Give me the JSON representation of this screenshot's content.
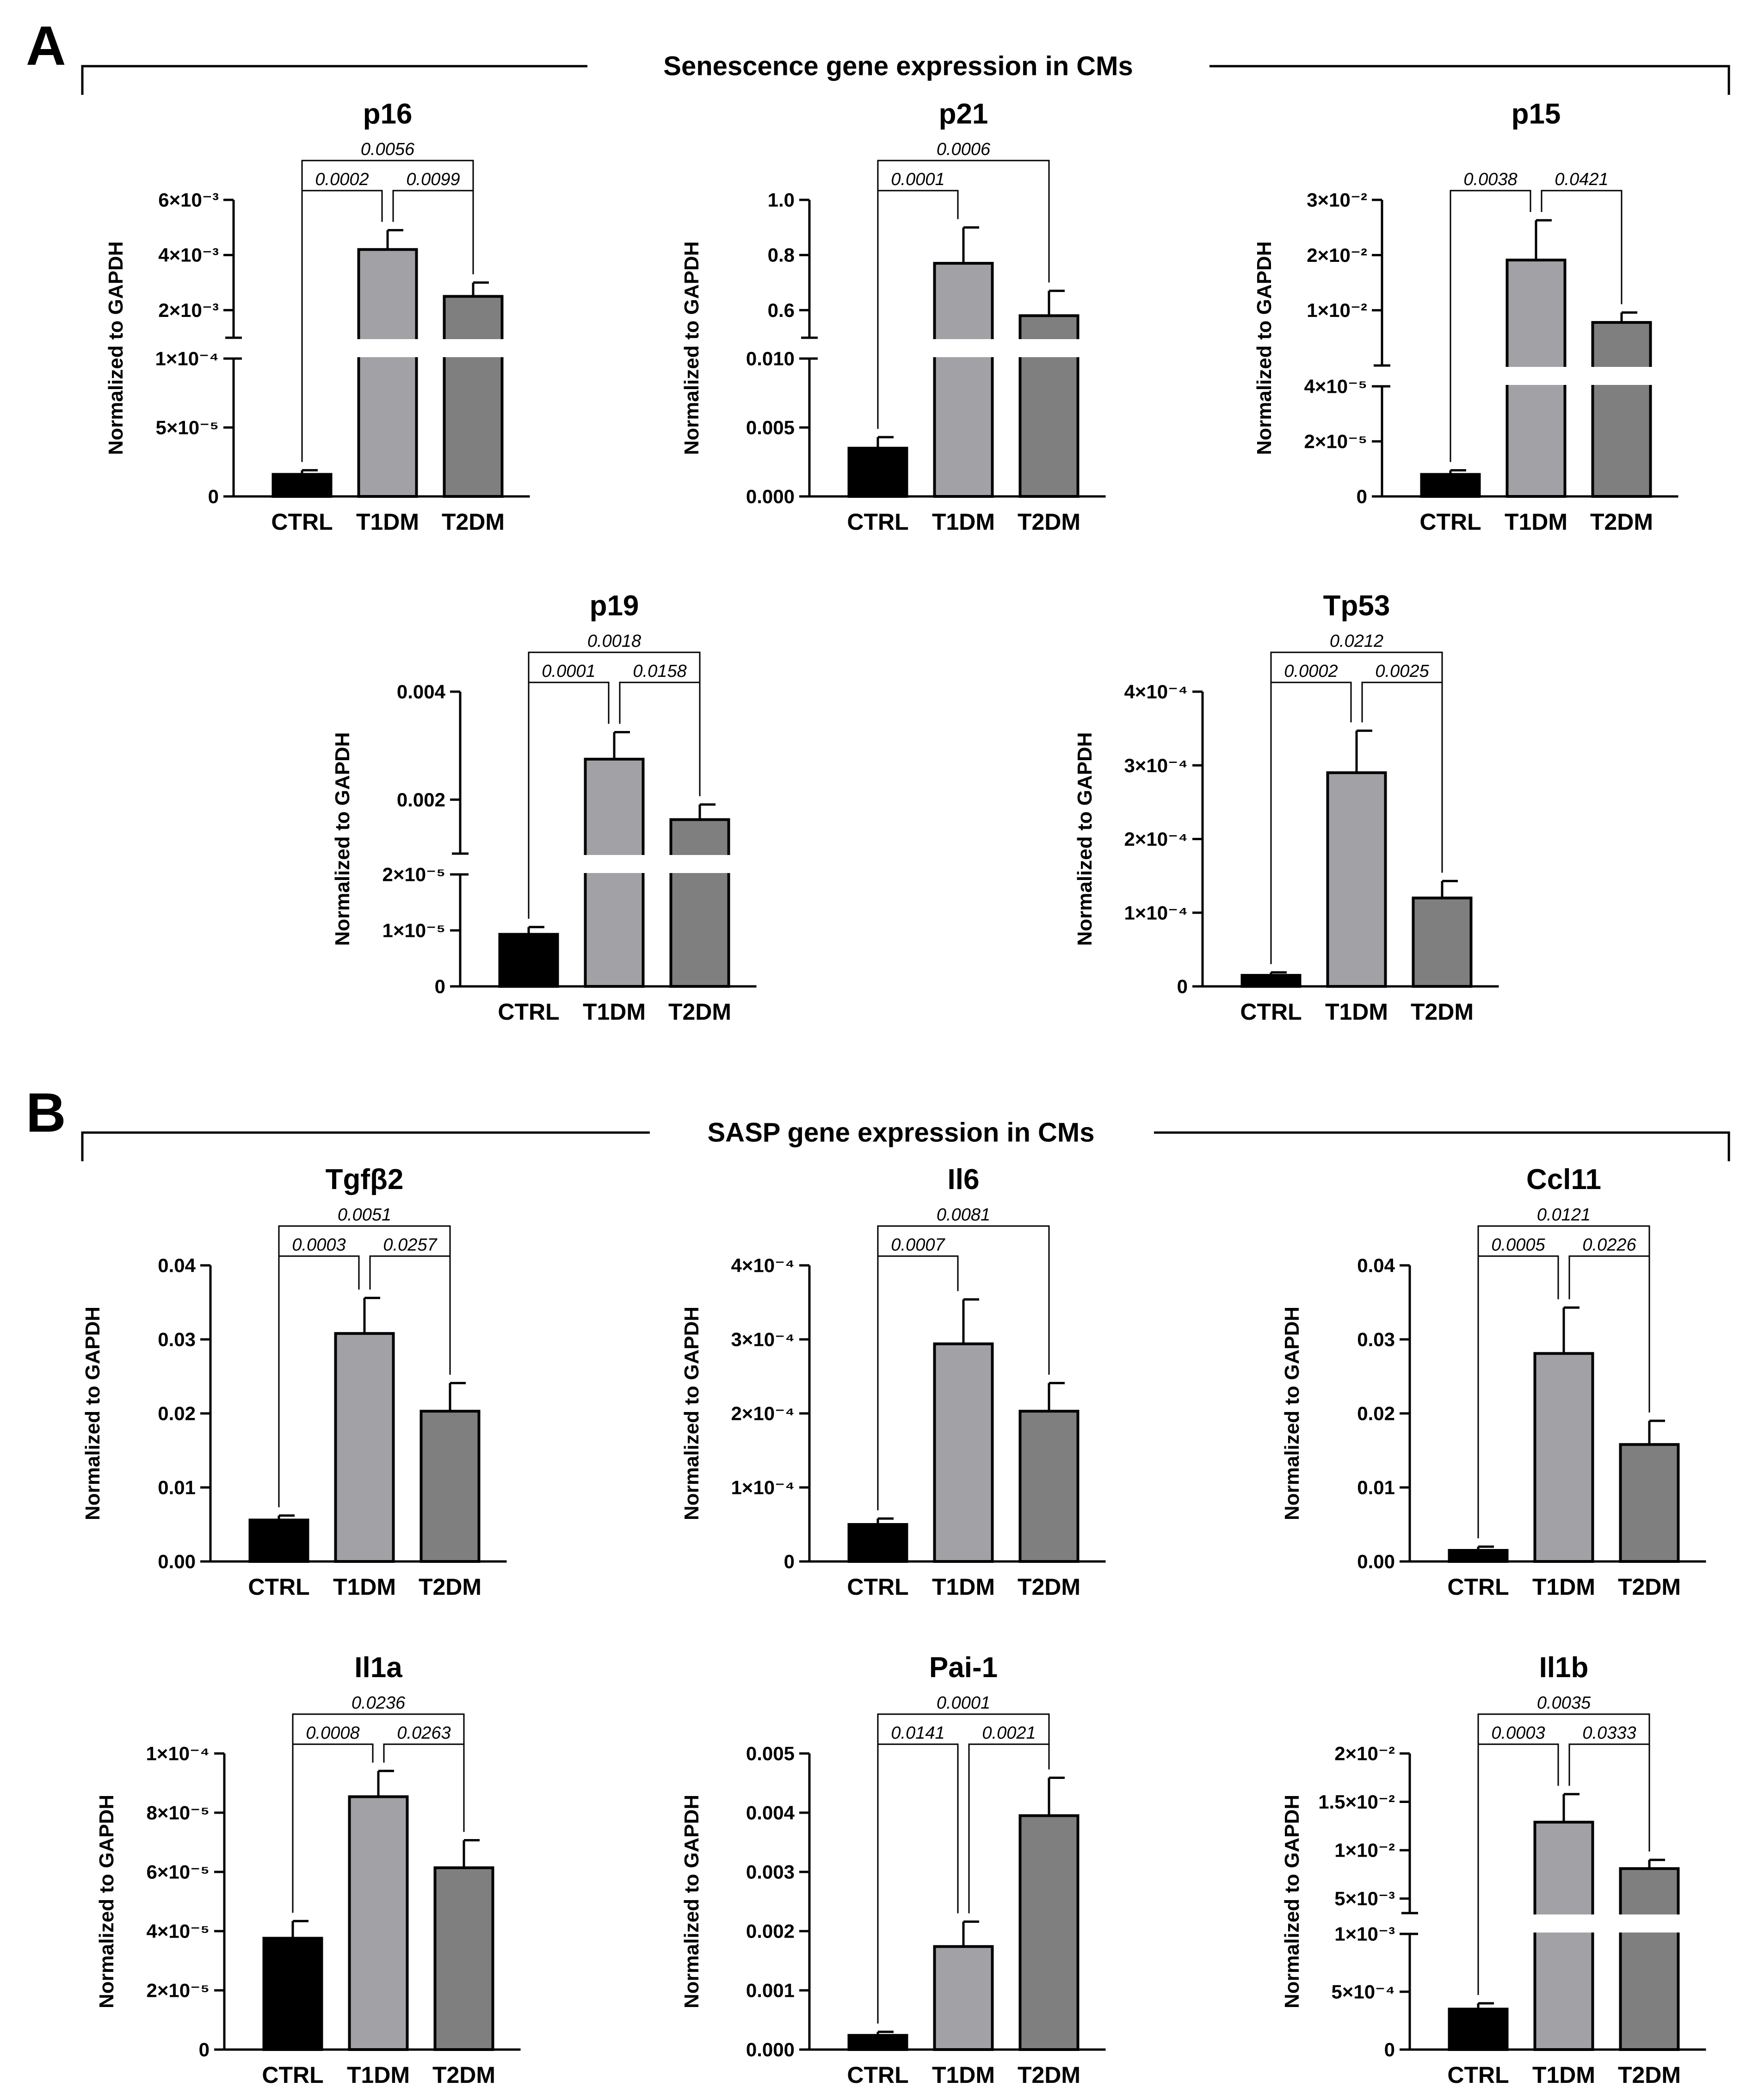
{
  "figure": {
    "sections": [
      {
        "letter": "A",
        "title": "Senescence gene expression in CMs"
      },
      {
        "letter": "B",
        "title": "SASP gene expression in CMs"
      }
    ]
  },
  "colors": {
    "CTRL": "#000000",
    "T1DM": "#a2a2a6",
    "T2DM": "#7f7f7f",
    "axis": "#000000"
  },
  "chart_data": [
    {
      "type": "bar",
      "title": "p16",
      "ylabel": "Normalized to GAPDH",
      "categories": [
        "CTRL",
        "T1DM",
        "T2DM"
      ],
      "broken_axis": true,
      "lower_ylim": [
        0,
        0.0001
      ],
      "upper_ylim": [
        0.001,
        0.006
      ],
      "values": [
        1.6e-05,
        0.0042,
        0.0025
      ],
      "errors": [
        3e-06,
        0.0007,
        0.0005
      ],
      "lower_ticks": [
        {
          "v": 0,
          "label": "0"
        },
        {
          "v": 5e-05,
          "label": "5×10⁻⁵"
        },
        {
          "v": 0.0001,
          "label": "1×10⁻⁴"
        }
      ],
      "upper_ticks": [
        {
          "v": 0.002,
          "label": "2×10⁻³"
        },
        {
          "v": 0.004,
          "label": "4×10⁻³"
        },
        {
          "v": 0.006,
          "label": "6×10⁻³"
        }
      ],
      "comparisons": [
        {
          "from": 0,
          "to": 1,
          "p": "0.0002"
        },
        {
          "from": 1,
          "to": 2,
          "p": "0.0099"
        },
        {
          "from": 0,
          "to": 2,
          "p": "0.0056"
        }
      ]
    },
    {
      "type": "bar",
      "title": "p21",
      "ylabel": "Normalized to GAPDH",
      "categories": [
        "CTRL",
        "T1DM",
        "T2DM"
      ],
      "broken_axis": true,
      "lower_ylim": [
        0,
        0.01
      ],
      "upper_ylim": [
        0.5,
        1.0
      ],
      "values": [
        0.0035,
        0.77,
        0.58
      ],
      "errors": [
        0.0008,
        0.13,
        0.09
      ],
      "lower_ticks": [
        {
          "v": 0,
          "label": "0.000"
        },
        {
          "v": 0.005,
          "label": "0.005"
        },
        {
          "v": 0.01,
          "label": "0.010"
        }
      ],
      "upper_ticks": [
        {
          "v": 0.6,
          "label": "0.6"
        },
        {
          "v": 0.8,
          "label": "0.8"
        },
        {
          "v": 1.0,
          "label": "1.0"
        }
      ],
      "comparisons": [
        {
          "from": 0,
          "to": 1,
          "p": "0.0001"
        },
        {
          "from": 0,
          "to": 2,
          "p": "0.0006"
        }
      ]
    },
    {
      "type": "bar",
      "title": "p15",
      "ylabel": "Normalized to GAPDH",
      "categories": [
        "CTRL",
        "T1DM",
        "T2DM"
      ],
      "broken_axis": true,
      "lower_ylim": [
        0,
        4e-05
      ],
      "upper_ylim": [
        0.0,
        0.03
      ],
      "values": [
        8e-06,
        0.0191,
        0.0078
      ],
      "errors": [
        1.5e-06,
        0.0072,
        0.0018
      ],
      "lower_ticks": [
        {
          "v": 0,
          "label": "0"
        },
        {
          "v": 2e-05,
          "label": "2×10⁻⁵"
        },
        {
          "v": 4e-05,
          "label": "4×10⁻⁵"
        }
      ],
      "upper_ticks": [
        {
          "v": 0.01,
          "label": "1×10⁻²"
        },
        {
          "v": 0.02,
          "label": "2×10⁻²"
        },
        {
          "v": 0.03,
          "label": "3×10⁻²"
        }
      ],
      "comparisons": [
        {
          "from": 0,
          "to": 1,
          "p": "0.0038"
        },
        {
          "from": 1,
          "to": 2,
          "p": "0.0421"
        }
      ]
    },
    {
      "type": "bar",
      "title": "p19",
      "ylabel": "Normalized to GAPDH",
      "categories": [
        "CTRL",
        "T1DM",
        "T2DM"
      ],
      "broken_axis": true,
      "lower_ylim": [
        0,
        2e-05
      ],
      "upper_ylim": [
        0.001,
        0.004
      ],
      "values": [
        9.3e-06,
        0.00275,
        0.00163
      ],
      "errors": [
        1.3e-06,
        0.0005,
        0.00028
      ],
      "lower_ticks": [
        {
          "v": 0,
          "label": "0"
        },
        {
          "v": 1e-05,
          "label": "1×10⁻⁵"
        },
        {
          "v": 2e-05,
          "label": "2×10⁻⁵"
        }
      ],
      "upper_ticks": [
        {
          "v": 0.002,
          "label": "0.002"
        },
        {
          "v": 0.004,
          "label": "0.004"
        }
      ],
      "comparisons": [
        {
          "from": 0,
          "to": 1,
          "p": "0.0001"
        },
        {
          "from": 1,
          "to": 2,
          "p": "0.0158"
        },
        {
          "from": 0,
          "to": 2,
          "p": "0.0018"
        }
      ]
    },
    {
      "type": "bar",
      "title": "Tp53",
      "ylabel": "Normalized to GAPDH",
      "categories": [
        "CTRL",
        "T1DM",
        "T2DM"
      ],
      "broken_axis": false,
      "ylim": [
        0,
        0.0004
      ],
      "values": [
        1.5e-05,
        0.00029,
        0.00012
      ],
      "errors": [
        4e-06,
        5.7e-05,
        2.3e-05
      ],
      "ticks": [
        {
          "v": 0,
          "label": "0"
        },
        {
          "v": 0.0001,
          "label": "1×10⁻⁴"
        },
        {
          "v": 0.0002,
          "label": "2×10⁻⁴"
        },
        {
          "v": 0.0003,
          "label": "3×10⁻⁴"
        },
        {
          "v": 0.0004,
          "label": "4×10⁻⁴"
        }
      ],
      "comparisons": [
        {
          "from": 0,
          "to": 1,
          "p": "0.0002"
        },
        {
          "from": 1,
          "to": 2,
          "p": "0.0025"
        },
        {
          "from": 0,
          "to": 2,
          "p": "0.0212"
        }
      ]
    },
    {
      "type": "bar",
      "title": "Tgfβ2",
      "ylabel": "Normalized to GAPDH",
      "categories": [
        "CTRL",
        "T1DM",
        "T2DM"
      ],
      "broken_axis": false,
      "ylim": [
        0,
        0.04
      ],
      "values": [
        0.0056,
        0.0308,
        0.0203
      ],
      "errors": [
        0.0006,
        0.0048,
        0.0038
      ],
      "ticks": [
        {
          "v": 0,
          "label": "0.00"
        },
        {
          "v": 0.01,
          "label": "0.01"
        },
        {
          "v": 0.02,
          "label": "0.02"
        },
        {
          "v": 0.03,
          "label": "0.03"
        },
        {
          "v": 0.04,
          "label": "0.04"
        }
      ],
      "comparisons": [
        {
          "from": 0,
          "to": 1,
          "p": "0.0003"
        },
        {
          "from": 1,
          "to": 2,
          "p": "0.0257"
        },
        {
          "from": 0,
          "to": 2,
          "p": "0.0051"
        }
      ]
    },
    {
      "type": "bar",
      "title": "Il6",
      "ylabel": "Normalized to GAPDH",
      "categories": [
        "CTRL",
        "T1DM",
        "T2DM"
      ],
      "broken_axis": false,
      "ylim": [
        0,
        0.0004
      ],
      "values": [
        5e-05,
        0.000294,
        0.000203
      ],
      "errors": [
        8e-06,
        6e-05,
        3.8e-05
      ],
      "ticks": [
        {
          "v": 0,
          "label": "0"
        },
        {
          "v": 0.0001,
          "label": "1×10⁻⁴"
        },
        {
          "v": 0.0002,
          "label": "2×10⁻⁴"
        },
        {
          "v": 0.0003,
          "label": "3×10⁻⁴"
        },
        {
          "v": 0.0004,
          "label": "4×10⁻⁴"
        }
      ],
      "comparisons": [
        {
          "from": 0,
          "to": 1,
          "p": "0.0007"
        },
        {
          "from": 0,
          "to": 2,
          "p": "0.0081"
        }
      ]
    },
    {
      "type": "bar",
      "title": "Ccl11",
      "ylabel": "Normalized to GAPDH",
      "categories": [
        "CTRL",
        "T1DM",
        "T2DM"
      ],
      "broken_axis": false,
      "ylim": [
        0,
        0.04
      ],
      "values": [
        0.0015,
        0.0281,
        0.0158
      ],
      "errors": [
        0.0005,
        0.0062,
        0.0032
      ],
      "ticks": [
        {
          "v": 0,
          "label": "0.00"
        },
        {
          "v": 0.01,
          "label": "0.01"
        },
        {
          "v": 0.02,
          "label": "0.02"
        },
        {
          "v": 0.03,
          "label": "0.03"
        },
        {
          "v": 0.04,
          "label": "0.04"
        }
      ],
      "comparisons": [
        {
          "from": 0,
          "to": 1,
          "p": "0.0005"
        },
        {
          "from": 1,
          "to": 2,
          "p": "0.0226"
        },
        {
          "from": 0,
          "to": 2,
          "p": "0.0121"
        }
      ]
    },
    {
      "type": "bar",
      "title": "Il1a",
      "ylabel": "Normalized to GAPDH",
      "categories": [
        "CTRL",
        "T1DM",
        "T2DM"
      ],
      "broken_axis": false,
      "ylim": [
        0,
        0.0001
      ],
      "values": [
        3.76e-05,
        8.54e-05,
        6.14e-05
      ],
      "errors": [
        5.8e-06,
        8.7e-06,
        9.3e-06
      ],
      "ticks": [
        {
          "v": 0,
          "label": "0"
        },
        {
          "v": 2e-05,
          "label": "2×10⁻⁵"
        },
        {
          "v": 4e-05,
          "label": "4×10⁻⁵"
        },
        {
          "v": 6e-05,
          "label": "6×10⁻⁵"
        },
        {
          "v": 8e-05,
          "label": "8×10⁻⁵"
        },
        {
          "v": 0.0001,
          "label": "1×10⁻⁴"
        }
      ],
      "comparisons": [
        {
          "from": 0,
          "to": 1,
          "p": "0.0008"
        },
        {
          "from": 1,
          "to": 2,
          "p": "0.0263"
        },
        {
          "from": 0,
          "to": 2,
          "p": "0.0236"
        }
      ]
    },
    {
      "type": "bar",
      "title": "Pai-1",
      "ylabel": "Normalized to GAPDH",
      "categories": [
        "CTRL",
        "T1DM",
        "T2DM"
      ],
      "broken_axis": false,
      "ylim": [
        0,
        0.005
      ],
      "values": [
        0.00024,
        0.00174,
        0.00395
      ],
      "errors": [
        6e-05,
        0.00042,
        0.00064
      ],
      "ticks": [
        {
          "v": 0,
          "label": "0.000"
        },
        {
          "v": 0.001,
          "label": "0.001"
        },
        {
          "v": 0.002,
          "label": "0.002"
        },
        {
          "v": 0.003,
          "label": "0.003"
        },
        {
          "v": 0.004,
          "label": "0.004"
        },
        {
          "v": 0.005,
          "label": "0.005"
        }
      ],
      "comparisons": [
        {
          "from": 0,
          "to": 1,
          "p": "0.0141"
        },
        {
          "from": 1,
          "to": 2,
          "p": "0.0021"
        },
        {
          "from": 0,
          "to": 2,
          "p": "0.0001"
        }
      ]
    },
    {
      "type": "bar",
      "title": "Il1b",
      "ylabel": "Normalized to GAPDH",
      "categories": [
        "CTRL",
        "T1DM",
        "T2DM"
      ],
      "broken_axis": true,
      "lower_ylim": [
        0,
        0.001
      ],
      "upper_ylim": [
        0.0035,
        0.02
      ],
      "values": [
        0.00035,
        0.0129,
        0.0081
      ],
      "errors": [
        5e-05,
        0.0029,
        0.0009
      ],
      "lower_ticks": [
        {
          "v": 0,
          "label": "0"
        },
        {
          "v": 0.0005,
          "label": "5×10⁻⁴"
        },
        {
          "v": 0.001,
          "label": "1×10⁻³"
        }
      ],
      "upper_ticks": [
        {
          "v": 0.005,
          "label": "5×10⁻³"
        },
        {
          "v": 0.01,
          "label": "1×10⁻²"
        },
        {
          "v": 0.015,
          "label": "1.5×10⁻²"
        },
        {
          "v": 0.02,
          "label": "2×10⁻²"
        }
      ],
      "comparisons": [
        {
          "from": 0,
          "to": 1,
          "p": "0.0003"
        },
        {
          "from": 1,
          "to": 2,
          "p": "0.0333"
        },
        {
          "from": 0,
          "to": 2,
          "p": "0.0035"
        }
      ]
    }
  ]
}
